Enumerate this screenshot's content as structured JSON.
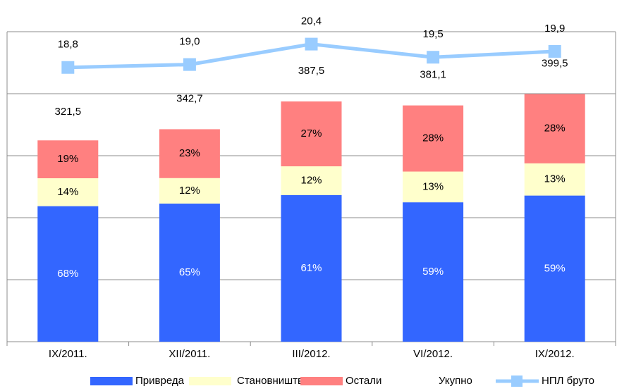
{
  "chart_data": {
    "type": "stacked-bar-line",
    "categories": [
      "IX/2011.",
      "XII/2011.",
      "III/2012.",
      "VI/2012.",
      "IX/2012."
    ],
    "series": [
      {
        "name": "Привреда",
        "color": "#3366ff",
        "values": [
          68,
          65,
          61,
          59,
          59
        ],
        "value_labels": [
          "68%",
          "65%",
          "61%",
          "59%",
          "59%"
        ]
      },
      {
        "name": "Становништво",
        "color": "#ffffcc",
        "values": [
          14,
          12,
          12,
          13,
          13
        ],
        "value_labels": [
          "14%",
          "12%",
          "12%",
          "13%",
          "13%"
        ]
      },
      {
        "name": "Остали",
        "color": "#ff8080",
        "values": [
          19,
          23,
          27,
          28,
          28
        ],
        "value_labels": [
          "19%",
          "23%",
          "27%",
          "28%",
          "28%"
        ]
      },
      {
        "name": "Укупно",
        "values": [
          321.5,
          342.7,
          387.5,
          381.1,
          399.5
        ],
        "value_labels": [
          "321,5",
          "342,7",
          "387,5",
          "381,1",
          "399,5"
        ]
      },
      {
        "name": "НПЛ бруто",
        "color": "#99ccff",
        "axis": "y2",
        "values": [
          18.8,
          19.0,
          20.4,
          19.5,
          19.9
        ],
        "value_labels": [
          "18,8",
          "19,0",
          "20,4",
          "19,5",
          "19,9"
        ]
      }
    ],
    "ylim": [
      0,
      500
    ],
    "yticks": [
      0,
      100,
      200,
      300,
      400,
      500
    ],
    "y2lim": [
      0,
      21.25
    ],
    "grid": true
  }
}
